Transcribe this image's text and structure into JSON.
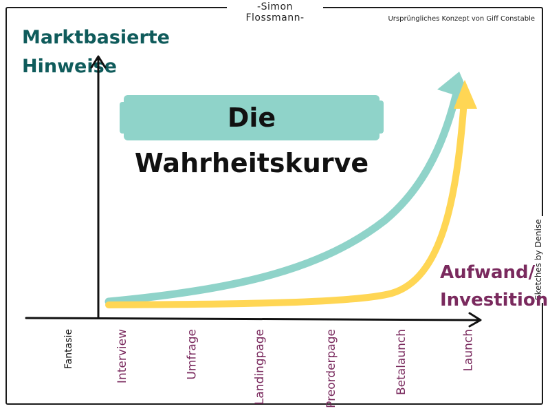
{
  "author": "-Simon Flossmann-",
  "origin_note": "Ursprüngliches Konzept von Giff Constable",
  "sketch_credit": "Sketches by Denise",
  "y_axis_label_line1": "Marktbasierte",
  "y_axis_label_line2": "Hinweise",
  "x_axis_label_line1": "Aufwand/",
  "x_axis_label_line2": "Investition",
  "title": "Die Wahrheitskurve",
  "stages": [
    "Fantasie",
    "Interview",
    "Umfrage",
    "Landingpage",
    "Preorderpage",
    "Betalaunch",
    "Launch"
  ],
  "colors": {
    "teal": "#8fd3c9",
    "yellow": "#ffd654",
    "ylabel": "#0f5b5b",
    "xlabel": "#7a2a5e",
    "axis": "#111111"
  }
}
